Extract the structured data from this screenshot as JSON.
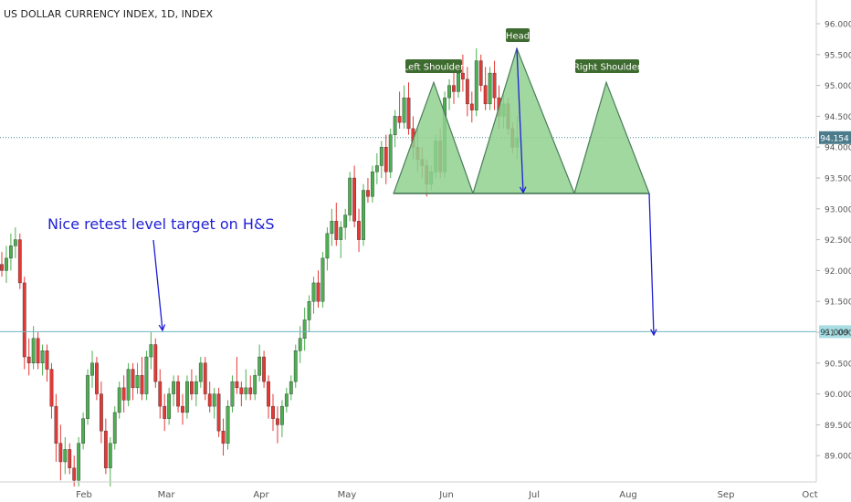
{
  "title": "US DOLLAR CURRENCY INDEX, 1D, INDEX",
  "annotation": "Nice retest level target on H&S",
  "chart_data": {
    "type": "candlestick",
    "title": "US DOLLAR CURRENCY INDEX, 1D, INDEX",
    "ylim": [
      87.6,
      96.35
    ],
    "y_ticks": [
      "89.000",
      "89.500",
      "90.000",
      "90.500",
      "91.000",
      "91.500",
      "92.000",
      "92.500",
      "93.000",
      "93.500",
      "94.000",
      "94.500",
      "95.000",
      "95.500",
      "96.000"
    ],
    "x_ticks": [
      "Feb",
      "Mar",
      "Apr",
      "May",
      "Jun",
      "Jul",
      "Aug",
      "Sep",
      "Oct"
    ],
    "grid": false,
    "colors": {
      "up": "#4caf50",
      "down": "#e53935",
      "line": "#4a7c59",
      "arrow": "#1f1fd6",
      "pattern_fill": "#8fd18f",
      "price_badge": "#4c7c8c"
    },
    "current_price": "94.154",
    "target_level": "91.009",
    "pattern": {
      "labels": [
        "Left Shoulder",
        "Head",
        "Right Shoulder"
      ],
      "neckline": 93.25,
      "left_shoulder_peak": 95.05,
      "head_peak": 95.6,
      "right_shoulder_peak": 95.05
    },
    "candles": {
      "start_date": "2018-01-02",
      "ohlc": [
        [
          92.1,
          92.3,
          91.9,
          92.0
        ],
        [
          92.0,
          92.4,
          91.8,
          92.2
        ],
        [
          92.2,
          92.6,
          92.0,
          92.4
        ],
        [
          92.4,
          92.7,
          92.2,
          92.5
        ],
        [
          92.5,
          92.6,
          91.7,
          91.8
        ],
        [
          91.8,
          91.9,
          90.4,
          90.6
        ],
        [
          90.6,
          90.9,
          90.3,
          90.5
        ],
        [
          90.5,
          91.1,
          90.4,
          90.9
        ],
        [
          90.9,
          91.0,
          90.4,
          90.5
        ],
        [
          90.5,
          90.8,
          90.3,
          90.7
        ],
        [
          90.7,
          90.8,
          90.2,
          90.4
        ],
        [
          90.4,
          90.5,
          89.6,
          89.8
        ],
        [
          89.8,
          90.0,
          88.9,
          89.2
        ],
        [
          89.2,
          89.5,
          88.6,
          88.9
        ],
        [
          88.9,
          89.3,
          88.7,
          89.1
        ],
        [
          89.1,
          89.2,
          88.7,
          88.8
        ],
        [
          88.8,
          89.0,
          88.5,
          88.6
        ],
        [
          88.6,
          89.3,
          88.5,
          89.2
        ],
        [
          89.2,
          89.7,
          89.1,
          89.6
        ],
        [
          89.6,
          90.4,
          89.5,
          90.3
        ],
        [
          90.3,
          90.7,
          90.1,
          90.5
        ],
        [
          90.5,
          90.6,
          89.9,
          90.0
        ],
        [
          90.0,
          90.2,
          89.2,
          89.4
        ],
        [
          89.4,
          89.6,
          88.7,
          88.8
        ],
        [
          88.8,
          89.3,
          88.5,
          89.2
        ],
        [
          89.2,
          89.8,
          89.1,
          89.7
        ],
        [
          89.7,
          90.2,
          89.6,
          90.1
        ],
        [
          90.1,
          90.3,
          89.7,
          89.9
        ],
        [
          89.9,
          90.5,
          89.8,
          90.4
        ],
        [
          90.4,
          90.5,
          89.9,
          90.1
        ],
        [
          90.1,
          90.5,
          90.0,
          90.3
        ],
        [
          90.3,
          90.6,
          89.9,
          90.0
        ],
        [
          90.0,
          90.7,
          89.9,
          90.6
        ],
        [
          90.6,
          91.0,
          90.4,
          90.8
        ],
        [
          90.8,
          90.9,
          90.1,
          90.2
        ],
        [
          90.2,
          90.4,
          89.6,
          89.8
        ],
        [
          89.8,
          90.0,
          89.4,
          89.6
        ],
        [
          89.6,
          90.1,
          89.5,
          90.0
        ],
        [
          90.0,
          90.3,
          89.8,
          90.2
        ],
        [
          90.2,
          90.3,
          89.7,
          89.8
        ],
        [
          89.8,
          90.0,
          89.5,
          89.7
        ],
        [
          89.7,
          90.3,
          89.6,
          90.2
        ],
        [
          90.2,
          90.4,
          89.9,
          90.0
        ],
        [
          90.0,
          90.3,
          89.8,
          90.2
        ],
        [
          90.2,
          90.6,
          90.1,
          90.5
        ],
        [
          90.5,
          90.6,
          89.9,
          90.0
        ],
        [
          90.0,
          90.2,
          89.7,
          89.8
        ],
        [
          89.8,
          90.1,
          89.6,
          90.0
        ],
        [
          90.0,
          90.1,
          89.3,
          89.4
        ],
        [
          89.4,
          89.6,
          89.0,
          89.2
        ],
        [
          89.2,
          89.9,
          89.1,
          89.8
        ],
        [
          89.8,
          90.3,
          89.7,
          90.2
        ],
        [
          90.2,
          90.6,
          90.0,
          90.1
        ],
        [
          90.1,
          90.2,
          89.8,
          90.0
        ],
        [
          90.0,
          90.4,
          89.9,
          90.1
        ],
        [
          90.1,
          90.3,
          89.9,
          90.0
        ],
        [
          90.0,
          90.4,
          89.9,
          90.3
        ],
        [
          90.3,
          90.8,
          90.2,
          90.6
        ],
        [
          90.6,
          90.7,
          90.1,
          90.2
        ],
        [
          90.2,
          90.3,
          89.6,
          89.8
        ],
        [
          89.8,
          90.0,
          89.4,
          89.6
        ],
        [
          89.6,
          89.8,
          89.2,
          89.5
        ],
        [
          89.5,
          89.9,
          89.3,
          89.8
        ],
        [
          89.8,
          90.1,
          89.7,
          90.0
        ],
        [
          90.0,
          90.3,
          89.9,
          90.2
        ],
        [
          90.2,
          90.8,
          90.1,
          90.7
        ],
        [
          90.7,
          91.1,
          90.5,
          90.9
        ],
        [
          90.9,
          91.4,
          90.7,
          91.2
        ],
        [
          91.2,
          91.6,
          91.0,
          91.5
        ],
        [
          91.5,
          91.9,
          91.3,
          91.8
        ],
        [
          91.8,
          92.0,
          91.4,
          91.5
        ],
        [
          91.5,
          92.3,
          91.4,
          92.2
        ],
        [
          92.2,
          92.7,
          92.0,
          92.6
        ],
        [
          92.6,
          93.0,
          92.4,
          92.8
        ],
        [
          92.8,
          93.1,
          92.4,
          92.5
        ],
        [
          92.5,
          92.8,
          92.2,
          92.7
        ],
        [
          92.7,
          93.0,
          92.5,
          92.9
        ],
        [
          92.9,
          93.6,
          92.8,
          93.5
        ],
        [
          93.5,
          93.7,
          92.7,
          92.8
        ],
        [
          92.8,
          93.0,
          92.3,
          92.5
        ],
        [
          92.5,
          93.4,
          92.4,
          93.3
        ],
        [
          93.3,
          93.5,
          93.1,
          93.2
        ],
        [
          93.2,
          93.7,
          93.1,
          93.6
        ],
        [
          93.6,
          93.9,
          93.4,
          93.7
        ],
        [
          93.7,
          94.1,
          93.5,
          94.0
        ],
        [
          94.0,
          94.2,
          93.4,
          93.6
        ],
        [
          93.6,
          94.3,
          93.5,
          94.2
        ],
        [
          94.2,
          94.6,
          94.0,
          94.5
        ],
        [
          94.5,
          94.9,
          94.3,
          94.4
        ],
        [
          94.4,
          95.0,
          94.3,
          94.8
        ],
        [
          94.8,
          95.05,
          94.2,
          94.3
        ],
        [
          94.3,
          94.5,
          93.8,
          94.0
        ],
        [
          94.0,
          94.3,
          93.6,
          93.8
        ],
        [
          93.8,
          94.0,
          93.5,
          93.7
        ],
        [
          93.7,
          93.8,
          93.2,
          93.4
        ],
        [
          93.4,
          93.7,
          93.3,
          93.6
        ],
        [
          93.6,
          94.2,
          93.5,
          94.1
        ],
        [
          94.1,
          94.3,
          93.5,
          93.6
        ],
        [
          93.6,
          94.9,
          93.5,
          94.8
        ],
        [
          94.8,
          95.1,
          94.6,
          95.0
        ],
        [
          95.0,
          95.3,
          94.7,
          94.9
        ],
        [
          94.9,
          95.4,
          94.8,
          95.2
        ],
        [
          95.2,
          95.5,
          94.9,
          95.1
        ],
        [
          95.1,
          95.3,
          94.5,
          94.7
        ],
        [
          94.7,
          94.9,
          94.4,
          94.6
        ],
        [
          94.6,
          95.6,
          94.5,
          95.4
        ],
        [
          95.4,
          95.5,
          94.9,
          95.0
        ],
        [
          95.0,
          95.3,
          94.6,
          94.7
        ],
        [
          94.7,
          95.3,
          94.6,
          95.2
        ],
        [
          95.2,
          95.4,
          94.6,
          94.8
        ],
        [
          94.8,
          95.0,
          94.3,
          94.5
        ],
        [
          94.5,
          94.9,
          94.3,
          94.7
        ],
        [
          94.7,
          94.8,
          94.2,
          94.3
        ],
        [
          94.3,
          94.4,
          93.9,
          94.0
        ],
        [
          94.0,
          94.5,
          93.8,
          94.154
        ]
      ]
    }
  }
}
